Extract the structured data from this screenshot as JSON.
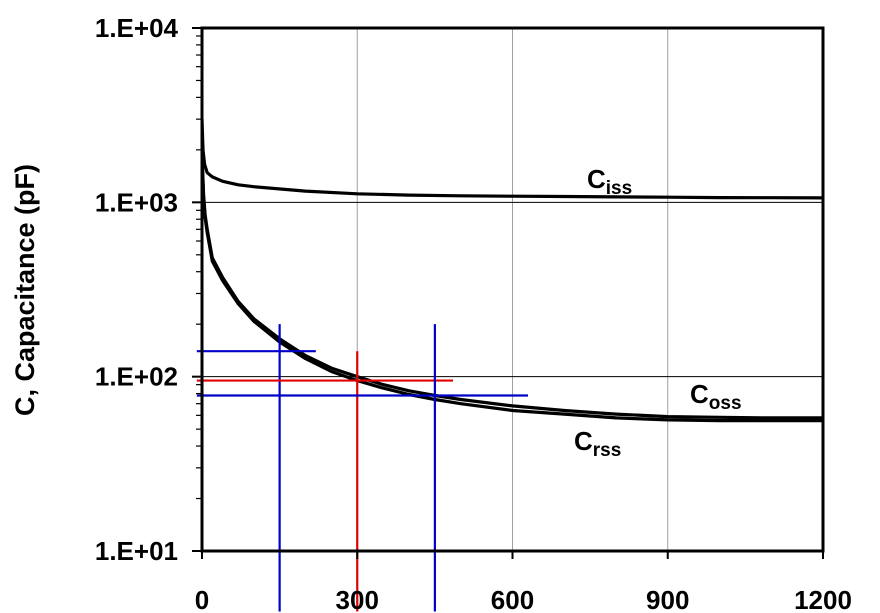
{
  "chart_data": {
    "type": "line",
    "title": "",
    "xlabel": "",
    "ylabel": "C, Capacitance (pF)",
    "xlim": [
      0,
      1200
    ],
    "ylim": [
      10,
      10000
    ],
    "y_scale": "log",
    "x_ticks": [
      0,
      300,
      600,
      900,
      1200
    ],
    "x_tick_labels": [
      "0",
      "300",
      "600",
      "900",
      "1200"
    ],
    "y_ticks": [
      10,
      100,
      1000,
      10000
    ],
    "y_tick_labels": [
      "1.E+01",
      "1.E+02",
      "1.E+03",
      "1.E+04"
    ],
    "grid": true,
    "legend": "none",
    "series": [
      {
        "name": "Ciss",
        "label_main": "C",
        "label_sub": "iss",
        "x": [
          0,
          2,
          5,
          10,
          20,
          40,
          70,
          100,
          200,
          300,
          400,
          500,
          600,
          700,
          800,
          900,
          1000,
          1100,
          1200
        ],
        "y": [
          3000,
          2000,
          1650,
          1480,
          1400,
          1320,
          1260,
          1230,
          1160,
          1120,
          1100,
          1090,
          1085,
          1080,
          1075,
          1070,
          1065,
          1063,
          1060
        ]
      },
      {
        "name": "Coss",
        "label_main": "C",
        "label_sub": "oss",
        "x": [
          0,
          3,
          6,
          10,
          20,
          40,
          70,
          100,
          150,
          200,
          250,
          300,
          350,
          400,
          450,
          500,
          600,
          700,
          800,
          900,
          1000,
          1100,
          1200
        ],
        "y": [
          1900,
          1100,
          850,
          700,
          480,
          370,
          270,
          215,
          165,
          132,
          112,
          100,
          90,
          83,
          78,
          74,
          68,
          64,
          61,
          59,
          58.5,
          58,
          58
        ]
      },
      {
        "name": "Crss",
        "label_main": "C",
        "label_sub": "rss",
        "x": [
          0,
          3,
          6,
          10,
          20,
          40,
          70,
          100,
          150,
          200,
          250,
          300,
          350,
          400,
          450,
          500,
          600,
          700,
          800,
          900,
          1000,
          1100,
          1200
        ],
        "y": [
          1800,
          1050,
          820,
          670,
          460,
          355,
          262,
          208,
          158,
          127,
          107,
          95,
          86,
          79,
          74,
          70,
          64,
          61,
          58,
          56.5,
          56,
          56,
          56
        ]
      }
    ],
    "crosshairs": [
      {
        "color": "#0000c8",
        "x": 150,
        "y": 140,
        "x_span": [
          -10,
          220
        ],
        "y_span": [
          4.5,
          200
        ]
      },
      {
        "color": "#e00000",
        "x": 300,
        "y": 95,
        "x_span": [
          -10,
          485
        ],
        "y_span": [
          4.5,
          140
        ]
      },
      {
        "color": "#0000c8",
        "x": 450,
        "y": 78,
        "x_span": [
          -10,
          630
        ],
        "y_span": [
          4.5,
          200
        ]
      }
    ],
    "colors": {
      "curve": "#000000",
      "grid": "#a0a0a0",
      "major_line": "#000000"
    }
  }
}
